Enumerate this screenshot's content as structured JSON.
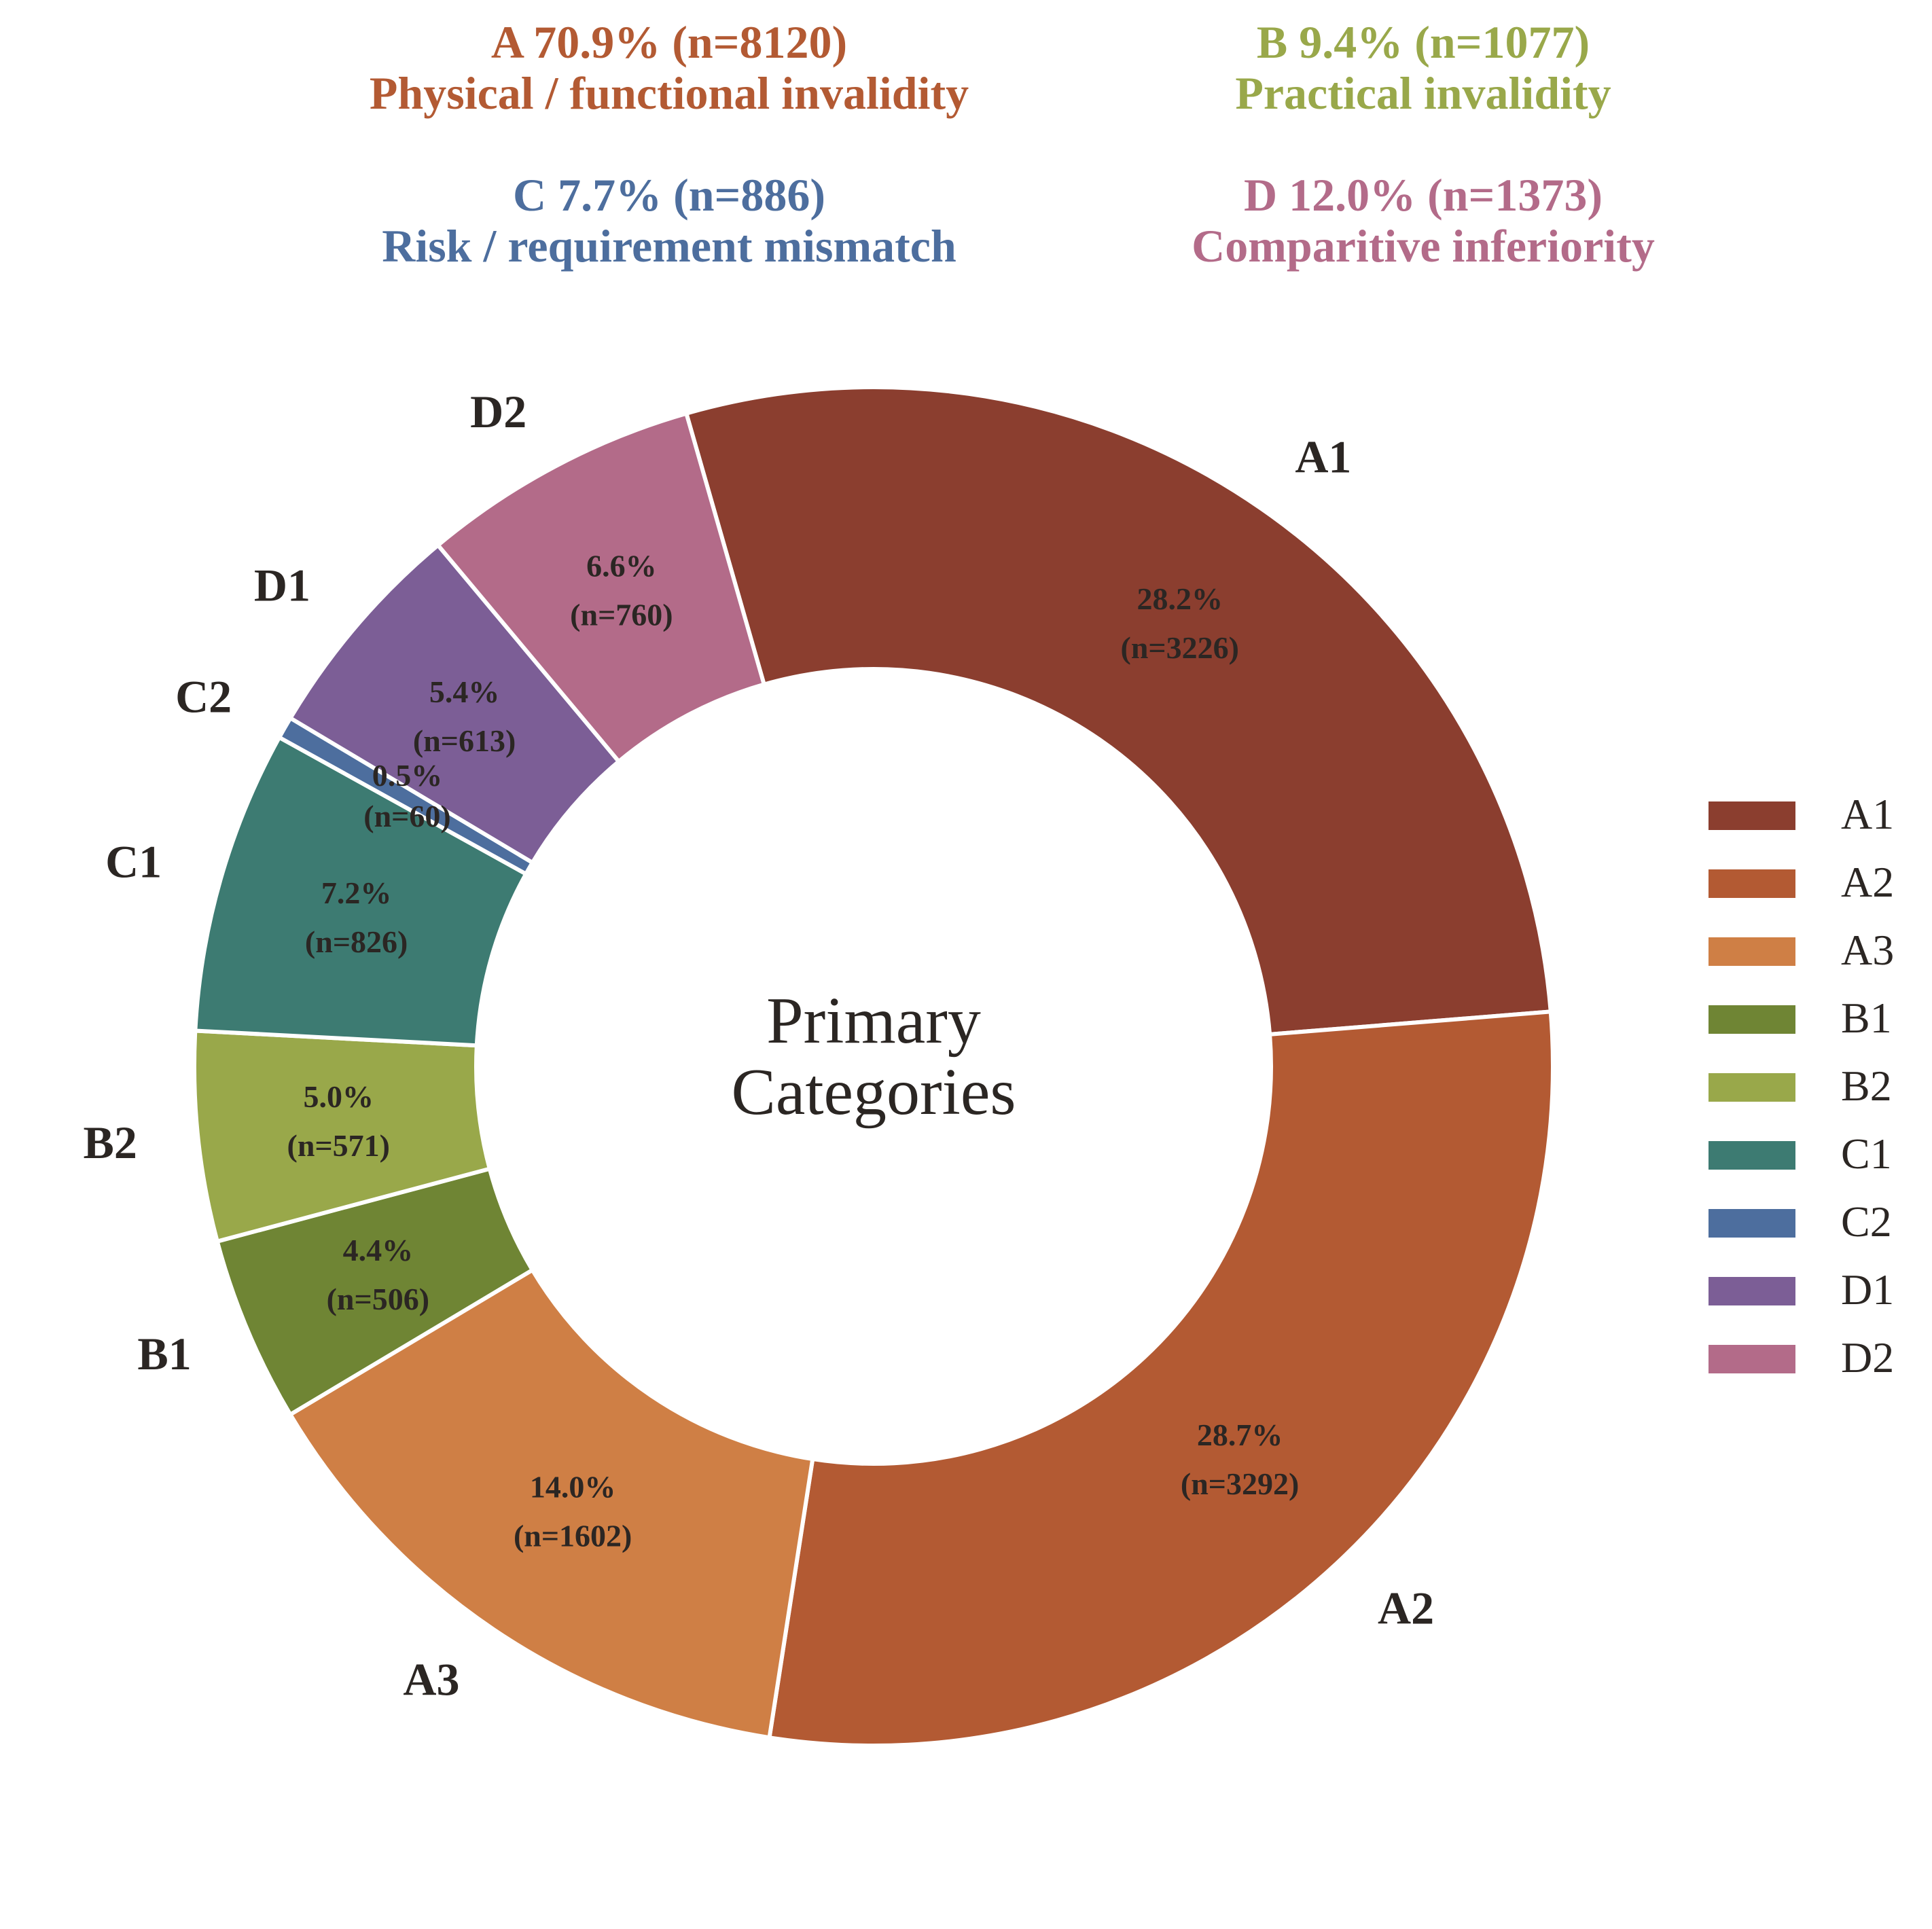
{
  "chart_data": {
    "type": "donut",
    "center_label": [
      "Primary",
      "Categories"
    ],
    "start_angle_deg": 106,
    "direction": "clockwise",
    "slices": [
      {
        "name": "A1",
        "label": "A1",
        "percent_text": "28.2%",
        "n_text": "(n=3226)",
        "value": 3226,
        "color": "#8B3E2F"
      },
      {
        "name": "A2",
        "label": "A2",
        "percent_text": "28.7%",
        "n_text": "(n=3292)",
        "value": 3292,
        "color": "#B35A33"
      },
      {
        "name": "A3",
        "label": "A3",
        "percent_text": "14.0%",
        "n_text": "(n=1602)",
        "value": 1602,
        "color": "#CF7F45"
      },
      {
        "name": "B1",
        "label": "B1",
        "percent_text": "4.4%",
        "n_text": "(n=506)",
        "value": 506,
        "color": "#6F8534"
      },
      {
        "name": "B2",
        "label": "B2",
        "percent_text": "5.0%",
        "n_text": "(n=571)",
        "value": 571,
        "color": "#99A84A"
      },
      {
        "name": "C1",
        "label": "C1",
        "percent_text": "7.2%",
        "n_text": "(n=826)",
        "value": 826,
        "color": "#3D7B72"
      },
      {
        "name": "C2",
        "label": "C2",
        "percent_text": "0.5%",
        "n_text": "(n=60)",
        "value": 60,
        "color": "#4D6E9E"
      },
      {
        "name": "D1",
        "label": "D1",
        "percent_text": "5.4%",
        "n_text": "(n=613)",
        "value": 613,
        "color": "#7C5E96"
      },
      {
        "name": "D2",
        "label": "D2",
        "percent_text": "6.6%",
        "n_text": "(n=760)",
        "value": 760,
        "color": "#B36B89"
      }
    ],
    "group_headers": [
      {
        "line1": "A 70.9% (n=8120)",
        "line2": "Physical / functional invalidity",
        "color": "#B35A33"
      },
      {
        "line1": "B 9.4% (n=1077)",
        "line2": "Practical invalidity",
        "color": "#99A84A"
      },
      {
        "line1": "C 7.7% (n=886)",
        "line2": "Risk / requirement mismatch",
        "color": "#4D6E9E"
      },
      {
        "line1": "D 12.0% (n=1373)",
        "line2": "Comparitive inferiority",
        "color": "#B36B89"
      }
    ],
    "legend": {
      "placement": "right",
      "entries": [
        "A1",
        "A2",
        "A3",
        "B1",
        "B2",
        "C1",
        "C2",
        "D1",
        "D2"
      ]
    }
  }
}
